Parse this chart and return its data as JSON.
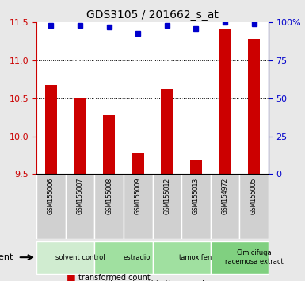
{
  "title": "GDS3105 / 201662_s_at",
  "samples": [
    "GSM155006",
    "GSM155007",
    "GSM155008",
    "GSM155009",
    "GSM155012",
    "GSM155013",
    "GSM154972",
    "GSM155005"
  ],
  "red_values": [
    10.68,
    10.5,
    10.28,
    9.78,
    10.62,
    9.68,
    11.42,
    11.28
  ],
  "blue_values": [
    98,
    98,
    97,
    93,
    98,
    96,
    100,
    99
  ],
  "ylim_left": [
    9.5,
    11.5
  ],
  "ylim_right": [
    0,
    100
  ],
  "yticks_left": [
    9.5,
    10.0,
    10.5,
    11.0,
    11.5
  ],
  "yticks_right": [
    0,
    25,
    50,
    75,
    100
  ],
  "ytick_labels_right": [
    "0",
    "25",
    "50",
    "75",
    "100%"
  ],
  "groups": [
    {
      "label": "solvent control",
      "start": 0,
      "end": 2,
      "color": "#d0ecd0"
    },
    {
      "label": "estradiol",
      "start": 2,
      "end": 4,
      "color": "#a0e0a0"
    },
    {
      "label": "tamoxifen",
      "start": 4,
      "end": 6,
      "color": "#a0e0a0"
    },
    {
      "label": "Cimicifuga\nracemosa extract",
      "start": 6,
      "end": 8,
      "color": "#80d080"
    }
  ],
  "bar_color": "#cc0000",
  "dot_color": "#0000cc",
  "bar_width": 0.4,
  "grid_color": "#000000",
  "background_color": "#e8e8e8",
  "plot_bg": "#ffffff",
  "left_tick_color": "#cc0000",
  "right_tick_color": "#0000cc"
}
